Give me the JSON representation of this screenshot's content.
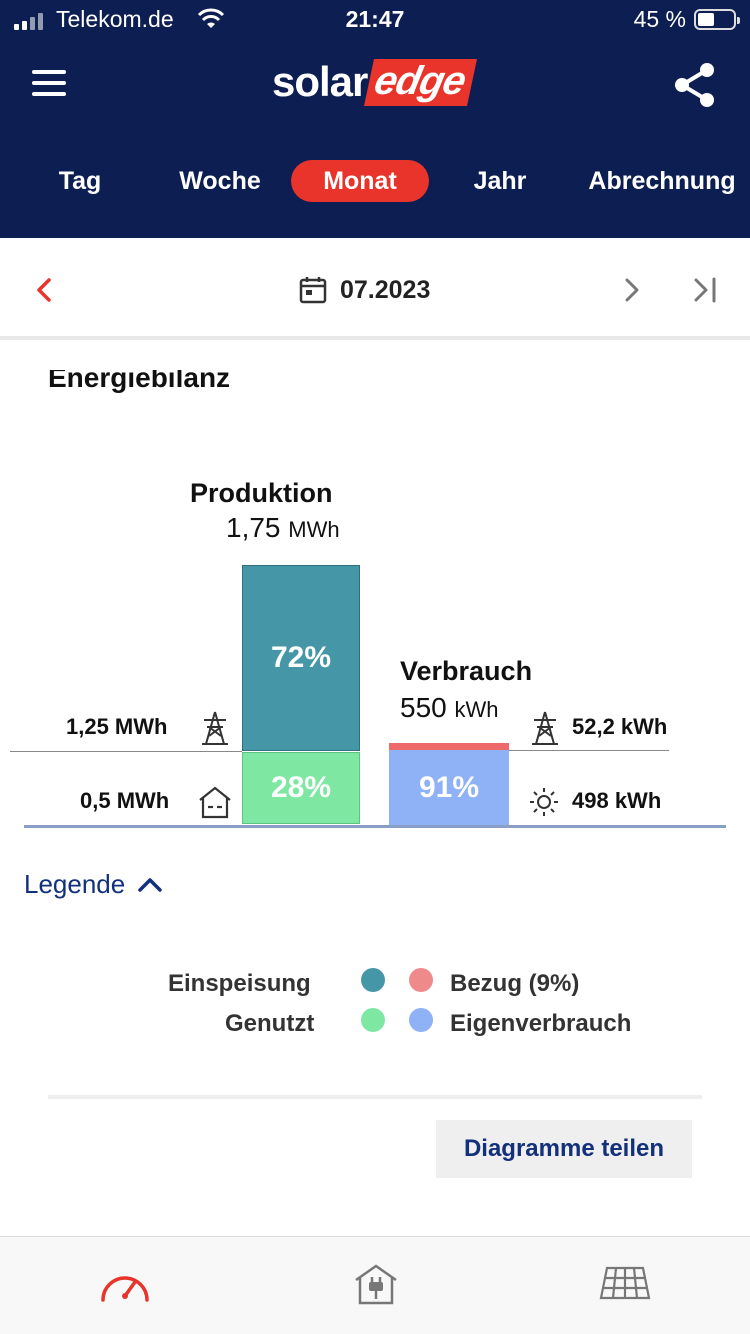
{
  "status_bar": {
    "carrier": "Telekom.de",
    "time": "21:47",
    "battery": "45 %"
  },
  "header": {
    "logo_left": "solar",
    "logo_right": "edge",
    "menu_icon": "hamburger-icon",
    "share_icon": "share-icon"
  },
  "tabs": [
    {
      "label": "Tag"
    },
    {
      "label": "Woche"
    },
    {
      "label": "Monat"
    },
    {
      "label": "Jahr"
    },
    {
      "label": "Abrechnung"
    }
  ],
  "active_tab": "Monat",
  "date_bar": {
    "date": "07.2023",
    "calendar_icon": "calendar-icon"
  },
  "card": {
    "title": "Energiebilanz"
  },
  "chart_data": {
    "type": "bar",
    "production": {
      "title": "Produktion",
      "value": "1,75",
      "unit": "MWh",
      "segments": [
        {
          "name": "Einspeisung",
          "value_label": "1,25 MWh",
          "percent": 72,
          "percent_label": "72%",
          "color": "#4597a8"
        },
        {
          "name": "Genutzt",
          "value_label": "0,5 MWh",
          "percent": 28,
          "percent_label": "28%",
          "color": "#7ee8a3"
        }
      ]
    },
    "consumption": {
      "title": "Verbrauch",
      "value": "550",
      "unit": "kWh",
      "segments": [
        {
          "name": "Bezug",
          "value_label": "52,2 kWh",
          "percent": 9,
          "color": "#ee6a6a"
        },
        {
          "name": "Eigenverbrauch",
          "value_label": "498 kWh",
          "percent": 91,
          "percent_label": "91%",
          "color": "#8fb1f5"
        }
      ]
    }
  },
  "legend": {
    "toggle_label": "Legende",
    "items": [
      {
        "label": "Einspeisung",
        "color": "#4597a8"
      },
      {
        "label": "Genutzt",
        "color": "#7ee8a3"
      },
      {
        "label": "Bezug (9%)",
        "color": "#ee8a8a"
      },
      {
        "label": "Eigenverbrauch",
        "color": "#8fb1f5"
      }
    ]
  },
  "actions": {
    "share_diagrams": "Diagramme teilen"
  },
  "bottom_nav": [
    {
      "icon": "dashboard-gauge-icon"
    },
    {
      "icon": "house-plug-icon"
    },
    {
      "icon": "solar-panel-icon"
    }
  ]
}
